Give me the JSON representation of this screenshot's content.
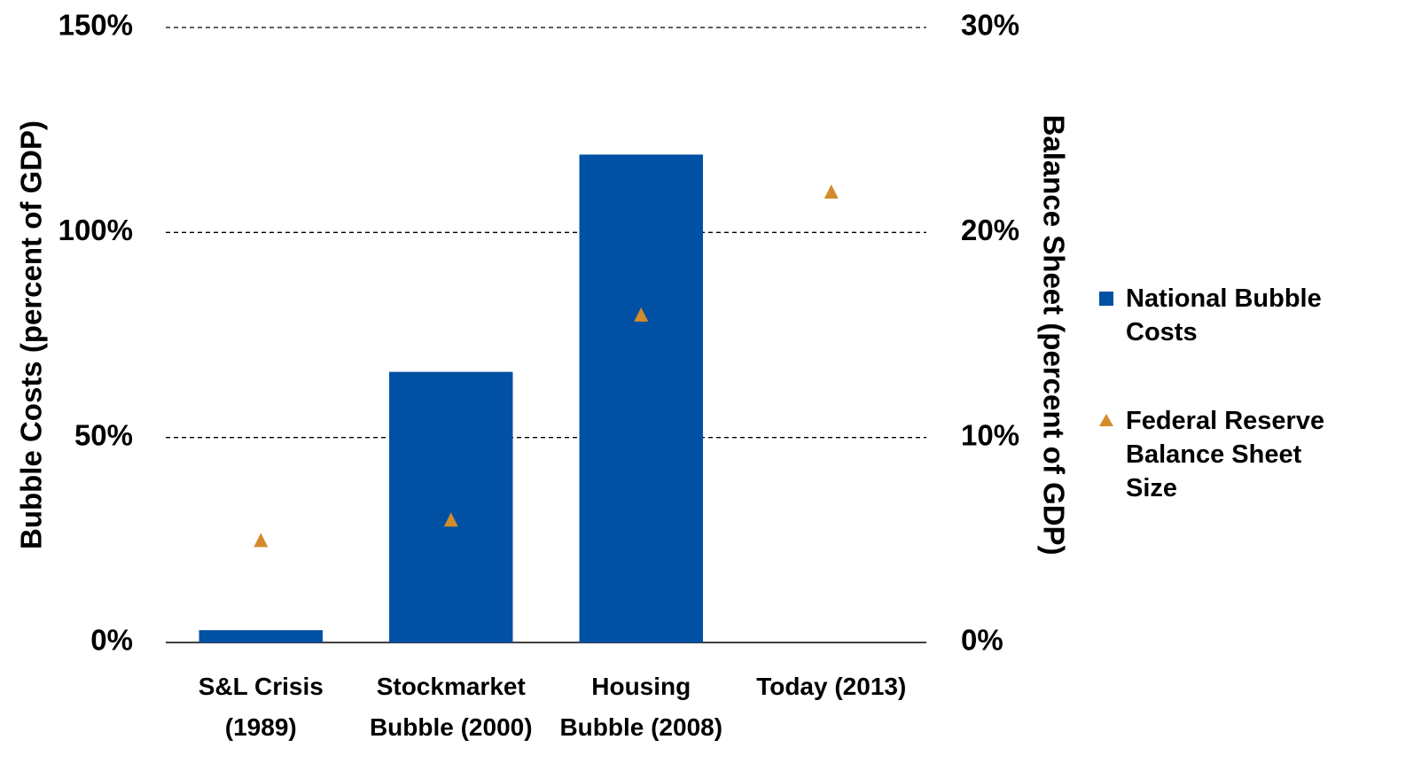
{
  "chart_data": {
    "type": "bar",
    "categories": [
      "S&L Crisis (1989)",
      "Stockmarket Bubble (2000)",
      "Housing Bubble (2008)",
      "Today (2013)"
    ],
    "series": [
      {
        "name": "National Bubble Costs",
        "color": "#0050a4",
        "type": "bar",
        "values": [
          3,
          66,
          119,
          null
        ]
      },
      {
        "name": "Federal Reserve Balance Sheet Size",
        "color": "#d38b2c",
        "type": "marker",
        "axis": "y2",
        "values": [
          5,
          6,
          16,
          22
        ]
      }
    ],
    "ylabel": "Bubble Costs (percent of GDP)",
    "y2label": "Balance Sheet (percent of GDP)",
    "ylim": [
      0,
      150
    ],
    "yticks": [
      {
        "value": 0,
        "label": "0%"
      },
      {
        "value": 50,
        "label": "50%"
      },
      {
        "value": 100,
        "label": "100%"
      },
      {
        "value": 150,
        "label": "150%"
      }
    ],
    "y2lim": [
      0,
      30
    ],
    "y2ticks": [
      {
        "value": 0,
        "label": "0%"
      },
      {
        "value": 10,
        "label": "10%"
      },
      {
        "value": 20,
        "label": "20%"
      },
      {
        "value": 30,
        "label": "30%"
      }
    ],
    "grid": true,
    "legend": "right"
  }
}
